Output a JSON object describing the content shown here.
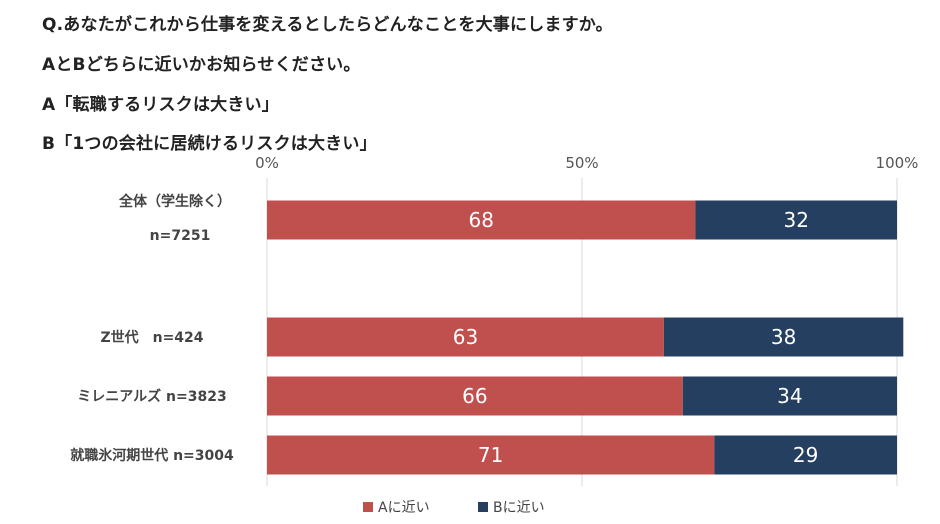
{
  "question": {
    "lines": [
      "Q.あなたがこれから仕事を変えるとしたらどんなことを大事にしますか。",
      "AとBどちらに近いかお知らせください。",
      "A「転職するリスクは大きい」",
      "B「1つの会社に居続けるリスクは大きい」"
    ]
  },
  "colors": {
    "a": "#c0504d",
    "b": "#243f60",
    "grid": "#d9d9d9"
  },
  "chart_data": {
    "type": "bar",
    "orientation": "horizontal-stacked",
    "xlim": [
      0,
      100
    ],
    "ticks": [
      "0%",
      "50%",
      "100%"
    ],
    "tick_values": [
      0,
      50,
      100
    ],
    "categories": [
      {
        "label_lines": [
          "全体（学生除く）",
          "n=7251"
        ]
      },
      {
        "label_lines": [
          "Z世代　n=424"
        ]
      },
      {
        "label_lines": [
          "ミレニアルズ n=3823"
        ]
      },
      {
        "label_lines": [
          "就職氷河期世代 n=3004"
        ]
      }
    ],
    "series": [
      {
        "name": "Aに近い",
        "values": [
          68,
          63,
          66,
          71
        ]
      },
      {
        "name": "Bに近い",
        "values": [
          32,
          38,
          34,
          29
        ]
      }
    ],
    "legend": "bottom"
  }
}
